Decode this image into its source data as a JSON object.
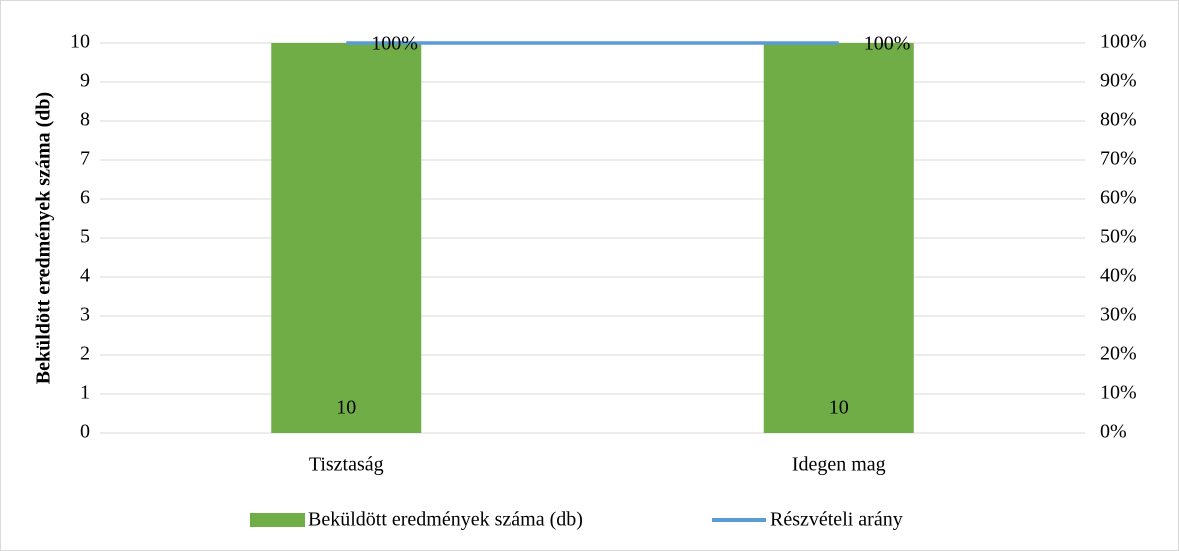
{
  "chart_data": {
    "type": "bar_line",
    "y_axis_label": "Beküldött eredmények száma (db)",
    "categories": [
      "Tisztaság",
      "Idegen mag"
    ],
    "series": [
      {
        "name": "Beküldött eredmények száma (db)",
        "type": "bar",
        "color": "#70ad47",
        "values": [
          10,
          10
        ]
      },
      {
        "name": "Részvételi arány",
        "type": "line",
        "axis": "y2",
        "color": "#5b9bd5",
        "values": [
          100,
          100
        ],
        "value_labels": [
          "100%",
          "100%"
        ]
      }
    ],
    "ylim": [
      0,
      10
    ],
    "yticks": [
      0,
      1,
      2,
      3,
      4,
      5,
      6,
      7,
      8,
      9,
      10
    ],
    "y2lim": [
      0,
      100
    ],
    "y2ticks": [
      {
        "value": 0,
        "label": "0%"
      },
      {
        "value": 10,
        "label": "10%"
      },
      {
        "value": 20,
        "label": "20%"
      },
      {
        "value": 30,
        "label": "30%"
      },
      {
        "value": 40,
        "label": "40%"
      },
      {
        "value": 50,
        "label": "50%"
      },
      {
        "value": 60,
        "label": "60%"
      },
      {
        "value": 70,
        "label": "70%"
      },
      {
        "value": 80,
        "label": "80%"
      },
      {
        "value": 90,
        "label": "90%"
      },
      {
        "value": 100,
        "label": "100%"
      }
    ],
    "grid": true,
    "legend": "bottom"
  }
}
